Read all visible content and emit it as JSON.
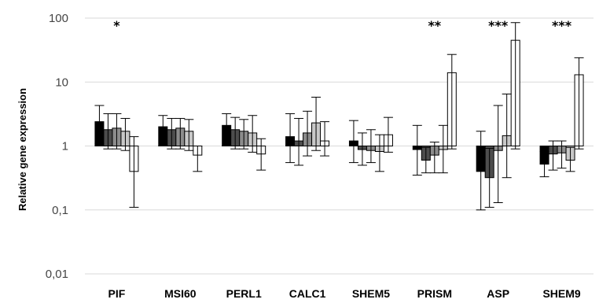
{
  "chart_data": {
    "type": "bar",
    "scale": "log",
    "baseline": 1,
    "ylabel": "Relative gene expression",
    "ylim": [
      0.01,
      100
    ],
    "yticks": [
      "0,01",
      "0,1",
      "1",
      "10",
      "100"
    ],
    "categories": [
      "PIF",
      "MSI60",
      "PERL1",
      "CALC1",
      "SHEM5",
      "PRISM",
      "ASP",
      "SHEM9"
    ],
    "series_colors": [
      "#000000",
      "#4d4d4d",
      "#8c8c8c",
      "#c8c8c8",
      "#ffffff"
    ],
    "significance": [
      "*",
      "",
      "",
      "",
      "",
      "**",
      "***",
      "***"
    ],
    "values": [
      [
        2.4,
        1.8,
        1.9,
        1.7,
        0.4
      ],
      [
        2.0,
        1.8,
        1.9,
        1.7,
        0.72
      ],
      [
        2.1,
        1.8,
        1.7,
        1.6,
        0.75
      ],
      [
        1.4,
        1.2,
        1.6,
        2.3,
        1.2
      ],
      [
        1.2,
        0.88,
        0.85,
        0.82,
        1.5
      ],
      [
        0.88,
        0.6,
        0.72,
        0.88,
        14
      ],
      [
        0.4,
        0.32,
        0.85,
        1.45,
        45
      ],
      [
        0.52,
        0.75,
        0.78,
        0.6,
        13
      ]
    ],
    "errors": [
      [
        [
          1.1,
          4.3
        ],
        [
          0.9,
          3.2
        ],
        [
          0.9,
          3.2
        ],
        [
          0.85,
          2.7
        ],
        [
          0.11,
          1.4
        ]
      ],
      [
        [
          1.0,
          3.0
        ],
        [
          0.9,
          2.7
        ],
        [
          0.9,
          2.7
        ],
        [
          0.85,
          2.6
        ],
        [
          0.4,
          1.0
        ]
      ],
      [
        [
          1.0,
          3.2
        ],
        [
          0.9,
          2.8
        ],
        [
          0.9,
          2.6
        ],
        [
          0.8,
          3.0
        ],
        [
          0.42,
          1.3
        ]
      ],
      [
        [
          0.55,
          3.2
        ],
        [
          0.5,
          2.7
        ],
        [
          0.7,
          3.5
        ],
        [
          0.85,
          5.8
        ],
        [
          0.7,
          2.4
        ]
      ],
      [
        [
          0.55,
          2.5
        ],
        [
          0.5,
          1.6
        ],
        [
          0.55,
          1.8
        ],
        [
          0.4,
          1.5
        ],
        [
          0.8,
          2.8
        ]
      ],
      [
        [
          0.35,
          2.1
        ],
        [
          0.38,
          0.95
        ],
        [
          0.38,
          1.15
        ],
        [
          0.38,
          2.1
        ],
        [
          0.9,
          27
        ]
      ],
      [
        [
          0.1,
          1.7
        ],
        [
          0.11,
          0.92
        ],
        [
          0.13,
          4.3
        ],
        [
          0.32,
          6.5
        ],
        [
          0.9,
          85
        ]
      ],
      [
        [
          0.33,
          0.82
        ],
        [
          0.42,
          1.2
        ],
        [
          0.45,
          1.2
        ],
        [
          0.4,
          0.95
        ],
        [
          0.9,
          24
        ]
      ]
    ]
  }
}
